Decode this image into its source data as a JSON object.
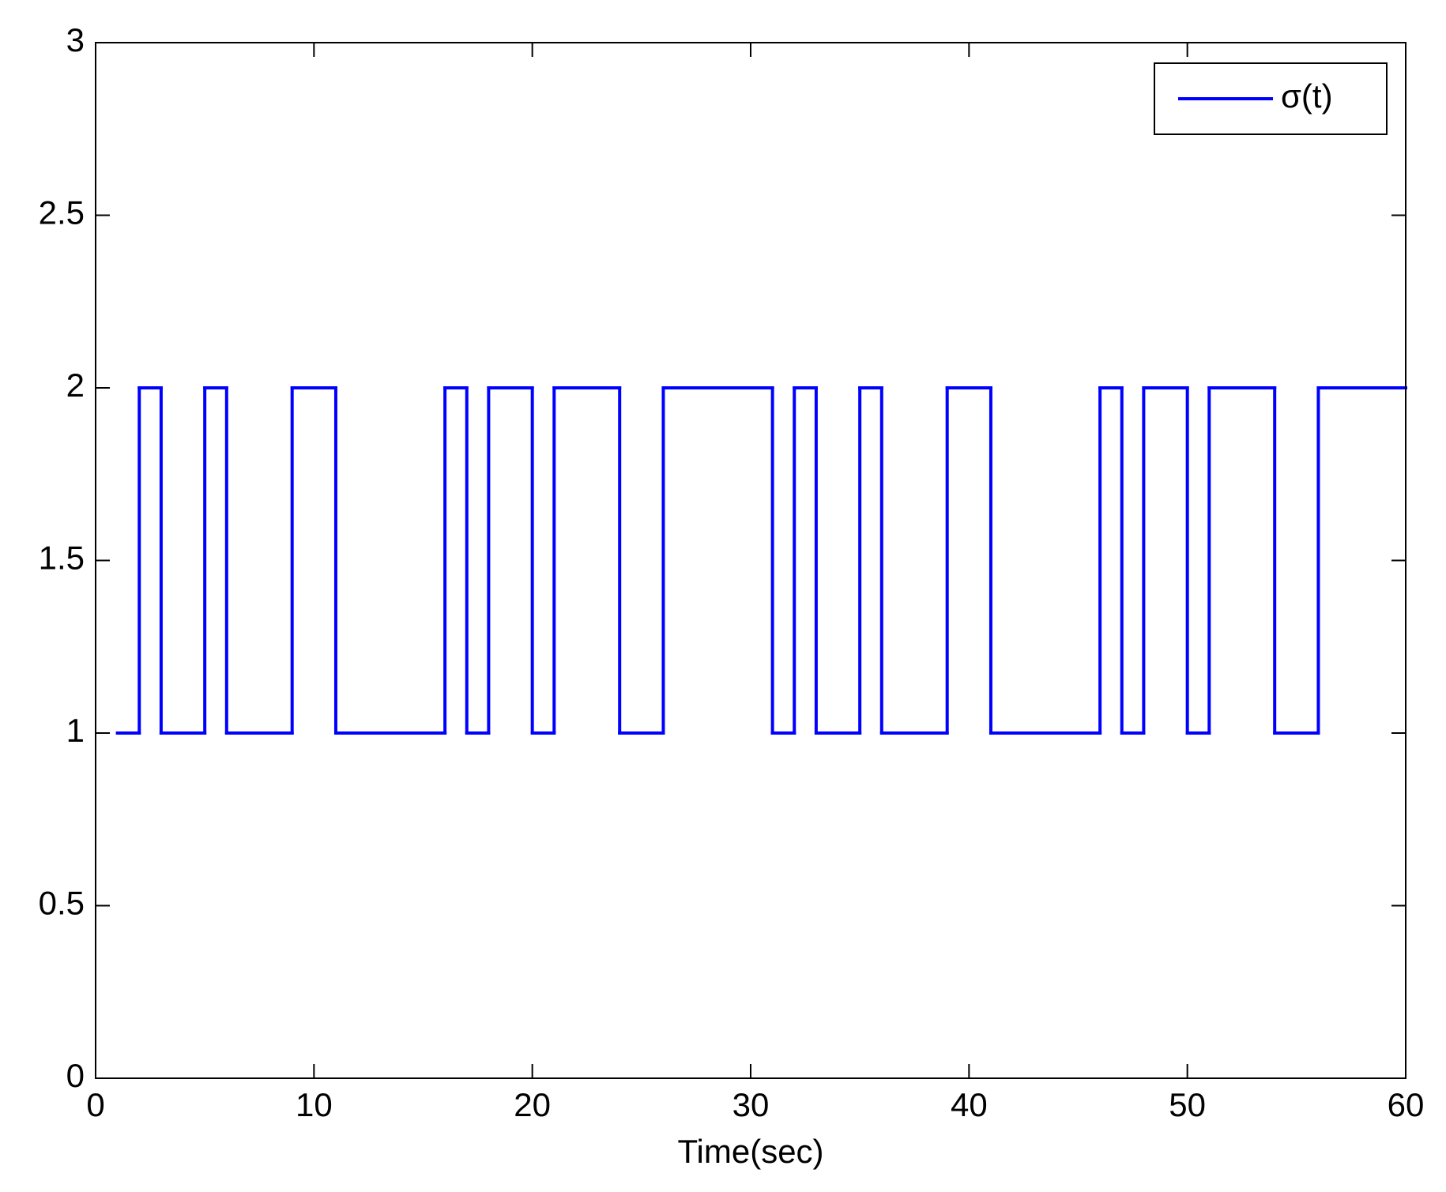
{
  "chart_data": {
    "type": "step",
    "step": "post",
    "xlabel": "Time(sec)",
    "x": [
      1,
      2,
      3,
      4,
      5,
      6,
      7,
      8,
      9,
      10,
      11,
      12,
      13,
      14,
      15,
      16,
      17,
      18,
      19,
      20,
      21,
      22,
      23,
      24,
      25,
      26,
      27,
      28,
      29,
      30,
      31,
      32,
      33,
      34,
      35,
      36,
      37,
      38,
      39,
      40,
      41,
      42,
      43,
      44,
      45,
      46,
      47,
      48,
      49,
      50,
      51,
      52,
      53,
      54,
      55,
      56,
      57,
      58,
      59,
      60
    ],
    "series": [
      {
        "name": "σ(t)",
        "color": "#0000ff",
        "values": [
          1,
          2,
          1,
          1,
          2,
          1,
          1,
          1,
          2,
          2,
          1,
          1,
          1,
          1,
          1,
          2,
          1,
          2,
          2,
          1,
          2,
          2,
          2,
          1,
          1,
          2,
          2,
          2,
          2,
          2,
          1,
          2,
          1,
          1,
          2,
          1,
          1,
          1,
          2,
          2,
          1,
          1,
          1,
          1,
          1,
          2,
          1,
          2,
          2,
          1,
          2,
          2,
          2,
          1,
          1,
          2,
          2,
          2,
          2,
          2
        ]
      }
    ],
    "xlim": [
      0,
      60
    ],
    "xticks": [
      0,
      10,
      20,
      30,
      40,
      50,
      60
    ],
    "ylim": [
      0,
      3
    ],
    "yticks": [
      0,
      0.5,
      1,
      1.5,
      2,
      2.5,
      3
    ],
    "legend": "upper right"
  }
}
